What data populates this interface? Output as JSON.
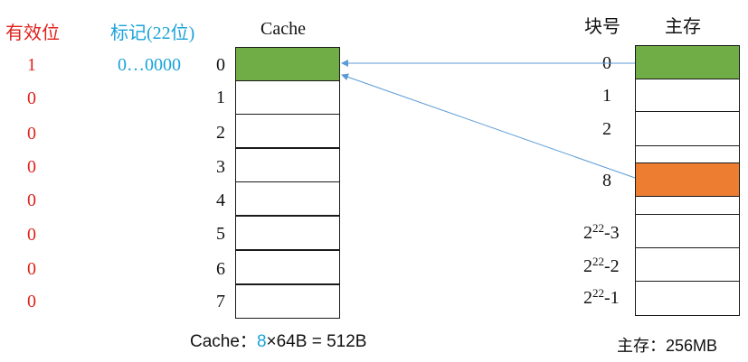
{
  "headers": {
    "valid_bit": "有效位",
    "tag": "标记(22位)",
    "cache": "Cache",
    "block_no": "块号",
    "main_memory": "主存"
  },
  "valid_bits": [
    "1",
    "0",
    "0",
    "0",
    "0",
    "0",
    "0",
    "0"
  ],
  "tag_value": "0…0000",
  "cache_rows": [
    "0",
    "1",
    "2",
    "3",
    "4",
    "5",
    "6",
    "7"
  ],
  "memory_labels": {
    "b0": "0",
    "b1": "1",
    "b2": "2",
    "b8": "8",
    "last3_base": "2",
    "last3_exp": "22",
    "last3_suffix": "-3",
    "last2_base": "2",
    "last2_exp": "22",
    "last2_suffix": "-2",
    "last1_base": "2",
    "last1_exp": "22",
    "last1_suffix": "-1"
  },
  "captions": {
    "cache_prefix": "Cache：",
    "cache_count": "8",
    "cache_rest": "×64B = 512B",
    "memory": "主存：256MB"
  },
  "colors": {
    "line0_fill": "#70ad47",
    "block8_fill": "#ed7d31",
    "arrow": "#5b9bd5"
  }
}
